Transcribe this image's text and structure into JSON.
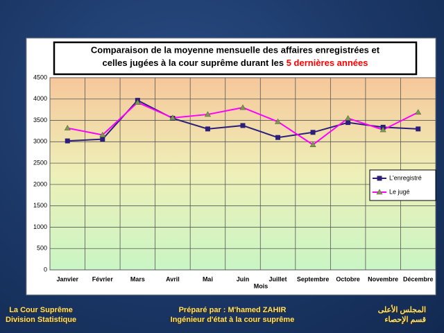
{
  "chart_data": {
    "type": "line",
    "title": "Comparaison de la moyenne mensuelle des affaires enregistrées et",
    "title_line2": "celles jugées à la cour suprême durant les",
    "title_highlight": "5 dernières années",
    "x_label": "Mois",
    "categories": [
      "Janvier",
      "Février",
      "Mars",
      "Avril",
      "Mai",
      "Juin",
      "Juillet",
      "Septembre",
      "Octobre",
      "Novembre",
      "Décembre"
    ],
    "series": [
      {
        "name": "L'enregistré",
        "color": "#2b1f7a",
        "marker": "square",
        "values": [
          3020,
          3060,
          3970,
          3550,
          3300,
          3380,
          3100,
          3220,
          3450,
          3340,
          3300
        ]
      },
      {
        "name": "Le jugé",
        "color": "#ff00ff",
        "marker": "triangle",
        "values": [
          3320,
          3160,
          3920,
          3560,
          3640,
          3800,
          3470,
          2930,
          3550,
          3280,
          3690
        ]
      }
    ],
    "ylim": [
      0,
      4500
    ],
    "yticks": [
      0,
      500,
      1000,
      1500,
      2000,
      2500,
      3000,
      3500,
      4000,
      4500
    ],
    "grid": true,
    "legend": "right"
  },
  "footer": {
    "left": [
      "La Cour Suprême",
      "Division Statistique"
    ],
    "center": [
      "Préparé par : M'hamed ZAHIR",
      "Ingénieur d'état à la cour suprême"
    ],
    "right": [
      "المجلس الأعلى",
      "قسم الإحصاء"
    ]
  }
}
